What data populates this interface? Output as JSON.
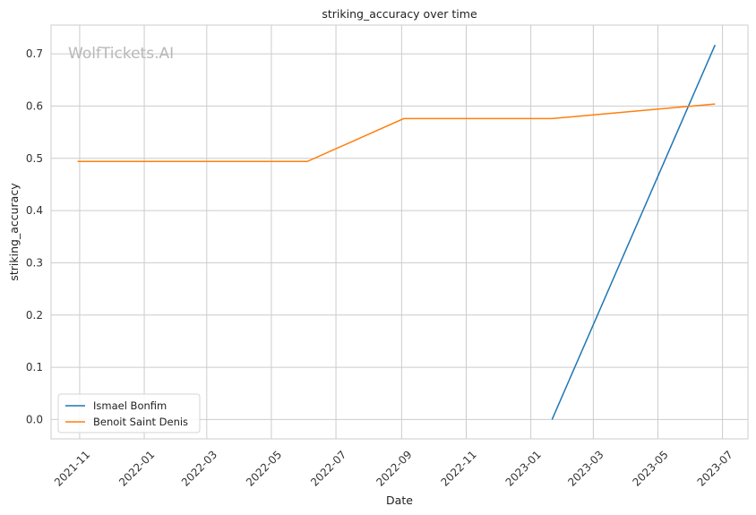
{
  "chart_data": {
    "type": "line",
    "title": "striking_accuracy over time",
    "xlabel": "Date",
    "ylabel": "striking_accuracy",
    "watermark": "WolfTickets.AI",
    "x_ticks": [
      "2021-11",
      "2022-01",
      "2022-03",
      "2022-05",
      "2022-07",
      "2022-09",
      "2022-11",
      "2023-01",
      "2023-03",
      "2023-05",
      "2023-07"
    ],
    "y_ticks": [
      "0.0",
      "0.1",
      "0.2",
      "0.3",
      "0.4",
      "0.5",
      "0.6",
      "0.7"
    ],
    "xlim": [
      "2021-10-05",
      "2023-07-25"
    ],
    "ylim": [
      -0.037,
      0.755
    ],
    "grid": true,
    "legend_position": "lower-left",
    "series": [
      {
        "name": "Ismael Bonfim",
        "color": "#1f77b4",
        "points": [
          {
            "x": "2023-01-21",
            "y": 0.0
          },
          {
            "x": "2023-06-24",
            "y": 0.717
          }
        ]
      },
      {
        "name": "Benoit Saint Denis",
        "color": "#ff7f0e",
        "points": [
          {
            "x": "2021-10-30",
            "y": 0.494
          },
          {
            "x": "2022-06-04",
            "y": 0.494
          },
          {
            "x": "2022-09-03",
            "y": 0.576
          },
          {
            "x": "2023-01-21",
            "y": 0.576
          },
          {
            "x": "2023-06-24",
            "y": 0.604
          }
        ]
      }
    ]
  }
}
